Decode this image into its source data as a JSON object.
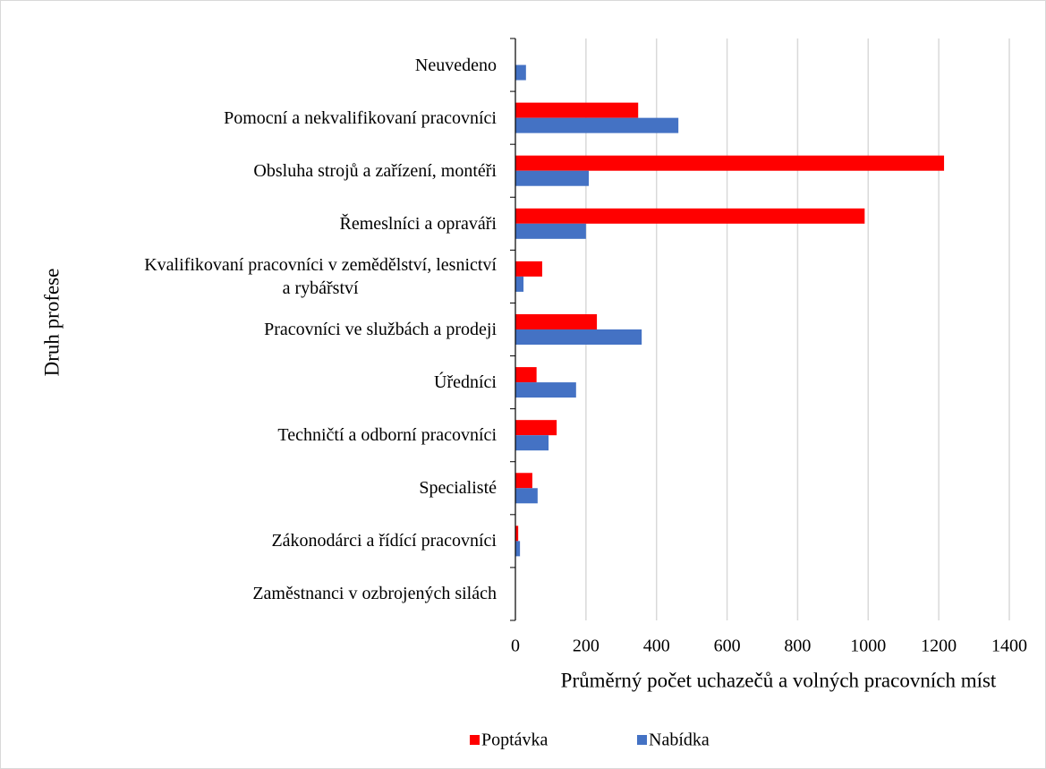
{
  "chart_data": {
    "type": "hbar",
    "xlabel": "Průměrný počet uchazečů a volných pracovních míst",
    "ylabel": "Druh profese",
    "categories": [
      "Neuvedeno",
      "Pomocní a nekvalifikovaní pracovníci",
      "Obsluha strojů a zařízení, montéři",
      "Řemeslníci a opraváři",
      "Kvalifikovaní pracovníci v zemědělství, lesnictví\na rybářství",
      "Pracovníci ve službách a prodeji",
      "Úředníci",
      "Techničtí a odborní pracovníci",
      "Specialisté",
      "Zákonodárci a řídící pracovníci",
      "Zaměstnanci v ozbrojených silách"
    ],
    "series": [
      {
        "name": "Poptávka",
        "color": "#ff0000",
        "values": [
          0,
          348,
          1215,
          990,
          76,
          231,
          60,
          117,
          48,
          8,
          0
        ]
      },
      {
        "name": "Nabídka",
        "color": "#4472c4",
        "values": [
          30,
          462,
          208,
          200,
          23,
          358,
          172,
          94,
          63,
          13,
          0
        ]
      }
    ],
    "xlim": [
      0,
      1400
    ],
    "xticks": [
      0,
      200,
      400,
      600,
      800,
      1000,
      1200,
      1400
    ],
    "grid": true,
    "legend": "bottom"
  }
}
